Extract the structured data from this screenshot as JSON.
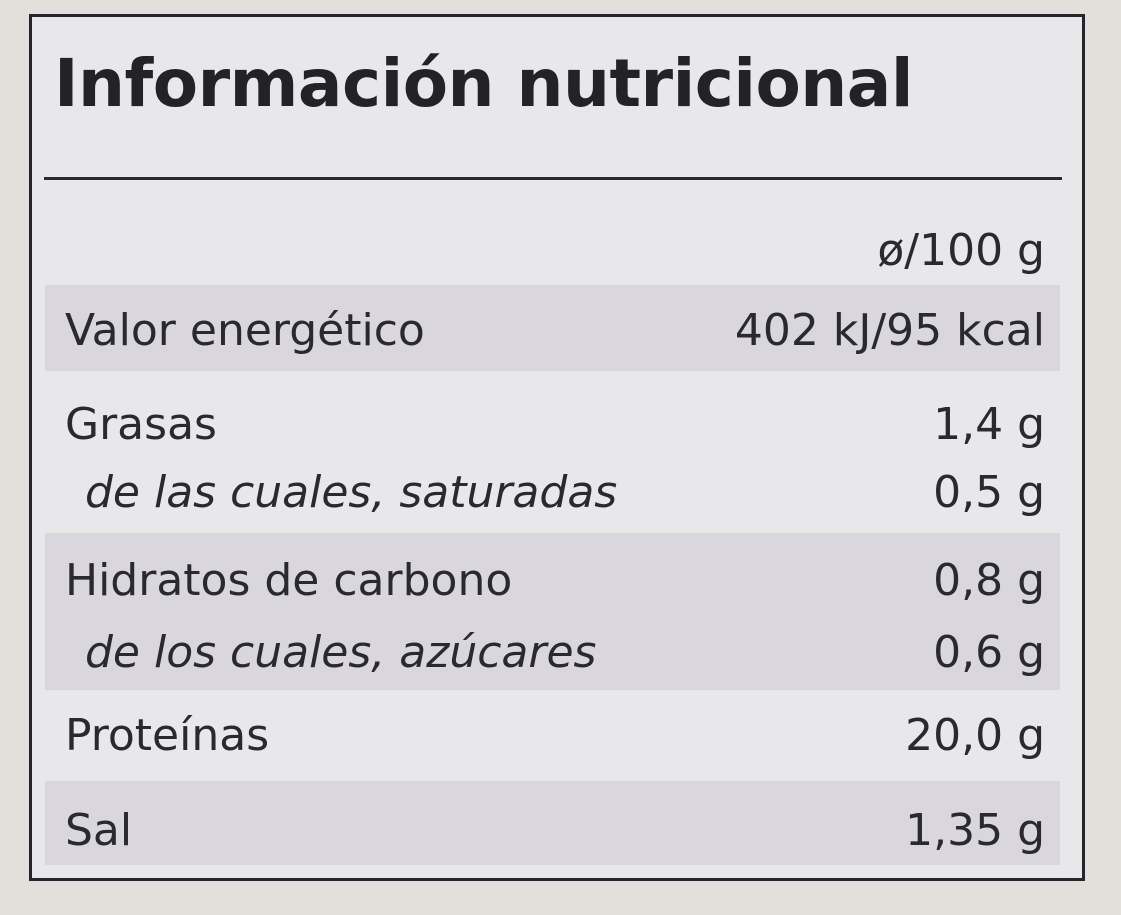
{
  "title": "Información nutricional",
  "column_header": "ø/100 g",
  "rows": [
    {
      "name": "Valor energético",
      "value": "402 kJ/95 kcal"
    },
    {
      "name": "Grasas",
      "value": "1,4 g"
    },
    {
      "name": "de las cuales, saturadas",
      "value": "0,5 g"
    },
    {
      "name": "Hidratos de carbono",
      "value": "0,8 g"
    },
    {
      "name": "de los cuales, azúcares",
      "value": "0,6 g"
    },
    {
      "name": "Proteínas",
      "value": "20,0 g"
    },
    {
      "name": "Sal",
      "value": "1,35 g"
    }
  ]
}
